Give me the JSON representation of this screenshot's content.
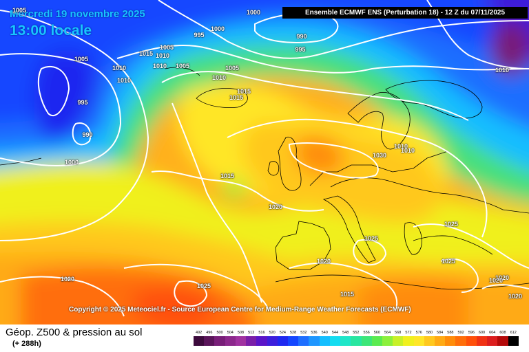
{
  "header": {
    "date_label": "Mercredi 19 novembre 2025",
    "time_label": "13:00 locale",
    "run_info": "Ensemble ECMWF ENS  (Perturbation 18)  -  12 Z du 07/11/2025"
  },
  "copyright": "Copyright © 2025 Meteociel.fr - Source European Centre for Medium-Range Weather Forecasts (ECMWF)",
  "legend": {
    "title": "Géop. Z500 & pression au sol",
    "subtitle": "(+ 288h)",
    "ticks": [
      "492",
      "496",
      "500",
      "504",
      "508",
      "512",
      "516",
      "520",
      "524",
      "528",
      "532",
      "536",
      "540",
      "544",
      "548",
      "552",
      "556",
      "560",
      "564",
      "568",
      "572",
      "576",
      "580",
      "584",
      "588",
      "592",
      "596",
      "600",
      "604",
      "608",
      "612"
    ],
    "colors": [
      "#3c0a3c",
      "#5a145a",
      "#781e78",
      "#8c288c",
      "#a032a0",
      "#7a1ea8",
      "#5a14c8",
      "#3c1edc",
      "#1e28f0",
      "#1446ff",
      "#1e6eff",
      "#1e96ff",
      "#14beff",
      "#14dcf0",
      "#1ee6c8",
      "#28e6a0",
      "#3ce678",
      "#5aeb50",
      "#8cf03c",
      "#c8f028",
      "#f0f01e",
      "#ffe628",
      "#ffc81e",
      "#ffaa14",
      "#ff8c0a",
      "#ff6e0a",
      "#ff500a",
      "#f03214",
      "#dc1e1e",
      "#b40a0a",
      "#000000"
    ]
  },
  "isobar_labels": [
    "1005",
    "1000",
    "1000",
    "995",
    "990",
    "995",
    "1015",
    "1010",
    "1005",
    "1005",
    "1010",
    "1005",
    "1010",
    "1010",
    "1005",
    "1010",
    "1015",
    "1015",
    "995",
    "990",
    "1000",
    "1015",
    "1020",
    "1030",
    "1010",
    "1010",
    "1025",
    "1025",
    "1025",
    "1020",
    "1020",
    "1020",
    "1015",
    "1025",
    "1020",
    "1020",
    "1010"
  ],
  "colors": {
    "header_text": "#18c4ff",
    "land_border": "#000000",
    "isobar": "#ffffff"
  }
}
